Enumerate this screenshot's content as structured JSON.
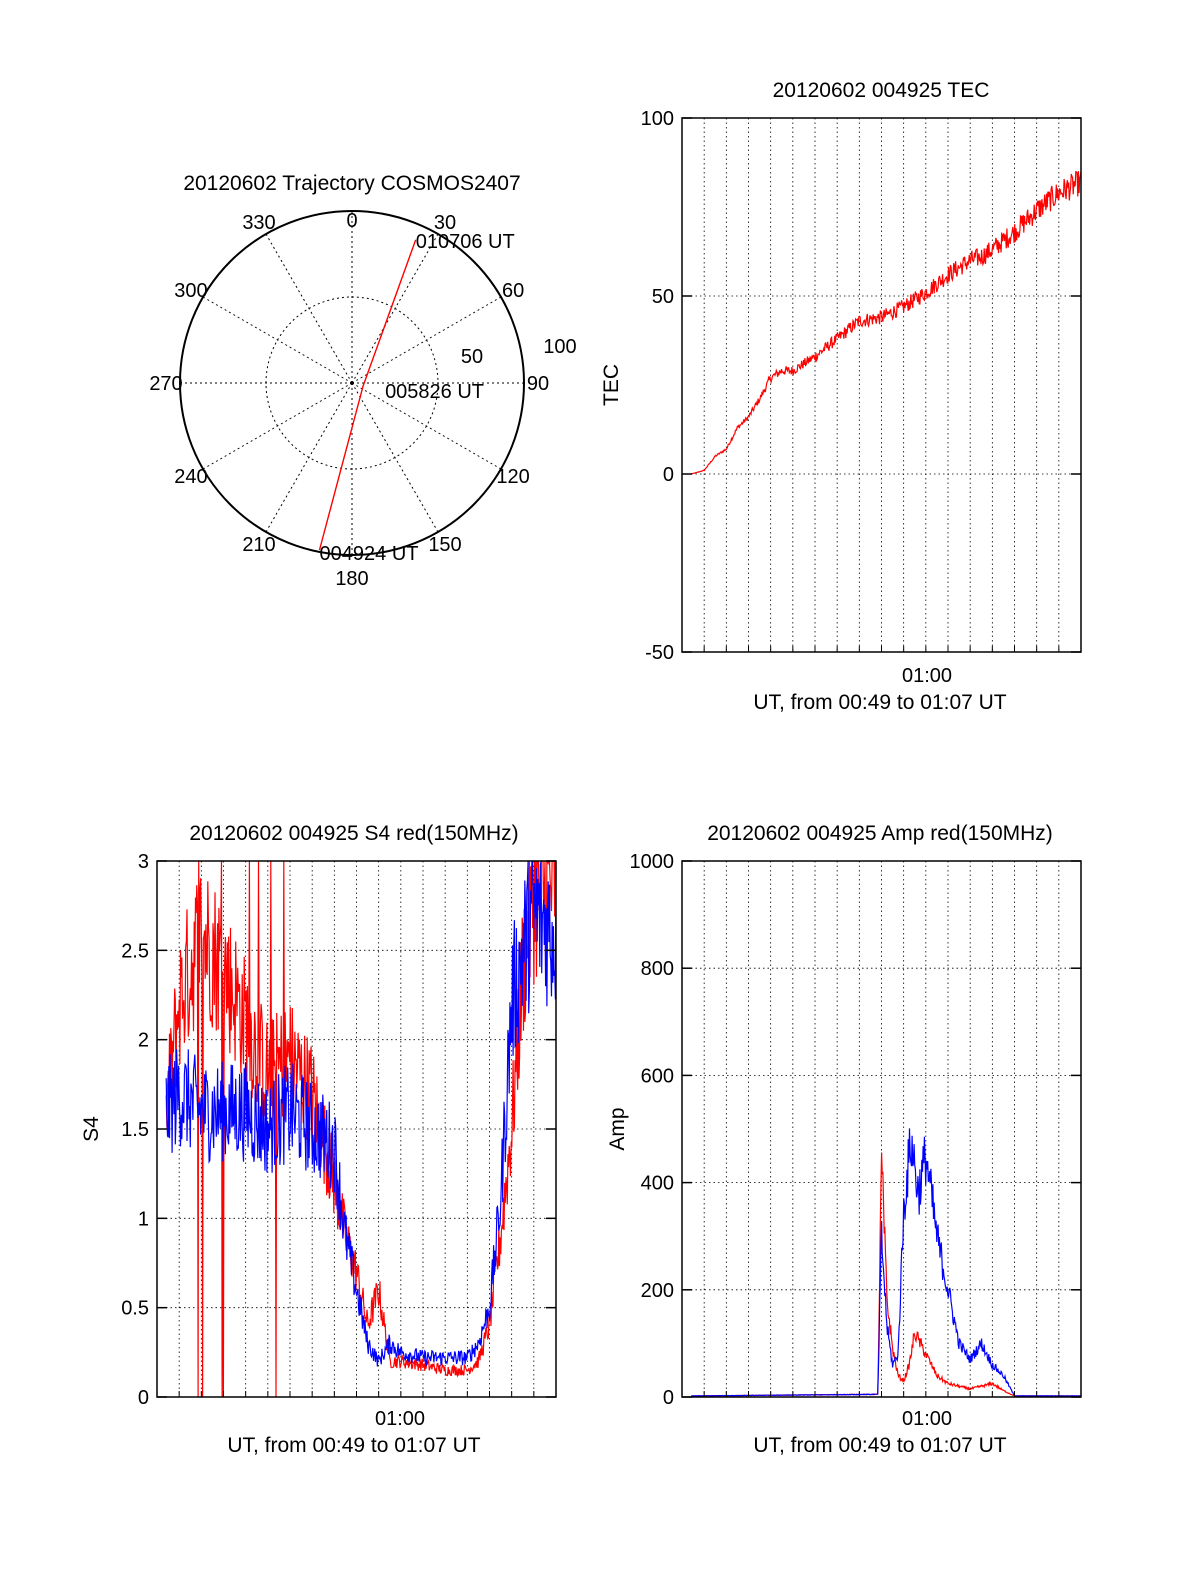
{
  "chart_data": [
    {
      "type": "polar",
      "title": "20120602 Trajectory COSMOS2407",
      "azimuth_labels": [
        "0",
        "30",
        "60",
        "90",
        "120",
        "150",
        "180",
        "210",
        "240",
        "270",
        "300",
        "330"
      ],
      "elevation_ring_labels": [
        "50",
        "100"
      ],
      "grid": true,
      "series": [
        {
          "color": "#ff0000",
          "points": [
            {
              "azimuth": 191,
              "radius": 89,
              "label": "004924 UT"
            },
            {
              "azimuth": 105,
              "radius": 6,
              "label": "005826 UT"
            },
            {
              "azimuth": 24,
              "radius": 82,
              "label": "010706 UT"
            }
          ]
        }
      ]
    },
    {
      "type": "line",
      "title": "20120602 004925 TEC",
      "xlabel": "UT, from 00:49 to 01:07 UT",
      "ylabel": "TEC",
      "x_tick_labels": [
        "01:00"
      ],
      "xlim": [
        "00:49",
        "01:07"
      ],
      "ylim": [
        -50,
        100
      ],
      "y_ticks": [
        -50,
        0,
        50,
        100
      ],
      "grid": true,
      "series": [
        {
          "color": "#ff0000",
          "x": [
            "00:49:25",
            "00:50:00",
            "00:50:30",
            "00:51:00",
            "00:51:30",
            "00:52:00",
            "00:52:30",
            "00:53:00",
            "00:53:30",
            "00:54:00",
            "00:55:00",
            "00:56:00",
            "00:57:00",
            "00:58:00",
            "00:59:00",
            "01:00:00",
            "01:01:00",
            "01:02:00",
            "01:02:30",
            "01:03:00",
            "01:04:00",
            "01:05:00",
            "01:06:00",
            "01:07:00"
          ],
          "values": [
            0,
            1,
            5,
            7,
            13,
            16,
            21,
            27,
            29,
            29,
            33,
            38,
            43,
            44,
            47,
            51,
            56,
            60,
            61,
            63,
            68,
            74,
            79,
            82
          ]
        }
      ]
    },
    {
      "type": "line",
      "title": "20120602 004925 S4 red(150MHz)",
      "xlabel": "UT, from 00:49 to 01:07 UT",
      "ylabel": "S4",
      "x_tick_labels": [
        "01:00"
      ],
      "xlim": [
        "00:49",
        "01:07"
      ],
      "ylim": [
        0,
        3
      ],
      "y_ticks": [
        "0",
        "0.5",
        "1",
        "1.5",
        "2",
        "2.5",
        "3"
      ],
      "grid": true,
      "series": [
        {
          "color": "#ff0000",
          "x": [
            "00:49:25",
            "00:50:00",
            "00:51:00",
            "00:52:00",
            "00:53:00",
            "00:54:00",
            "00:55:00",
            "00:56:00",
            "00:57:00",
            "00:57:30",
            "00:58:00",
            "00:58:30",
            "00:59:00",
            "00:59:30",
            "01:00:00",
            "01:01:00",
            "01:02:00",
            "01:03:00",
            "01:03:30",
            "01:04:00",
            "01:04:30",
            "01:05:00",
            "01:05:30",
            "01:06:00",
            "01:07:00"
          ],
          "values": [
            1.6,
            2.2,
            2.6,
            2.4,
            2.1,
            1.8,
            1.9,
            1.7,
            1.2,
            0.9,
            0.7,
            0.4,
            0.6,
            0.2,
            0.2,
            0.18,
            0.15,
            0.15,
            0.2,
            0.4,
            0.9,
            1.5,
            2.4,
            2.8,
            2.9
          ]
        },
        {
          "color": "#0000ff",
          "x": [
            "00:49:25",
            "00:50:00",
            "00:51:00",
            "00:52:00",
            "00:53:00",
            "00:54:00",
            "00:55:00",
            "00:56:00",
            "00:57:00",
            "00:57:30",
            "00:58:00",
            "00:58:30",
            "00:59:00",
            "00:59:30",
            "01:00:00",
            "01:01:00",
            "01:02:00",
            "01:03:00",
            "01:03:30",
            "01:04:00",
            "01:04:30",
            "01:05:00",
            "01:05:30",
            "01:06:00",
            "01:07:00"
          ],
          "values": [
            1.6,
            1.7,
            1.6,
            1.6,
            1.6,
            1.5,
            1.6,
            1.5,
            1.4,
            0.9,
            0.6,
            0.3,
            0.2,
            0.3,
            0.25,
            0.22,
            0.22,
            0.22,
            0.3,
            0.5,
            1.1,
            2.2,
            2.5,
            2.7,
            2.6
          ]
        }
      ]
    },
    {
      "type": "line",
      "title": "20120602 004925 Amp red(150MHz)",
      "xlabel": "UT, from 00:49 to 01:07 UT",
      "ylabel": "Amp",
      "x_tick_labels": [
        "01:00"
      ],
      "xlim": [
        "00:49",
        "01:07"
      ],
      "ylim": [
        0,
        1000
      ],
      "y_ticks": [
        0,
        200,
        400,
        600,
        800,
        1000
      ],
      "grid": true,
      "series": [
        {
          "color": "#ff0000",
          "x": [
            "00:49:25",
            "00:57:50",
            "00:58:00",
            "00:58:15",
            "00:58:30",
            "00:58:45",
            "00:59:00",
            "00:59:15",
            "00:59:30",
            "01:00:00",
            "01:00:30",
            "01:01:00",
            "01:01:30",
            "01:02:00",
            "01:02:30",
            "01:03:00",
            "01:03:30",
            "01:04:00",
            "01:07:00"
          ],
          "values": [
            2,
            5,
            440,
            180,
            90,
            40,
            30,
            60,
            120,
            80,
            40,
            25,
            20,
            15,
            20,
            25,
            12,
            2,
            2
          ]
        },
        {
          "color": "#0000ff",
          "x": [
            "00:49:25",
            "00:57:50",
            "00:58:00",
            "00:58:15",
            "00:58:30",
            "00:58:45",
            "00:59:00",
            "00:59:20",
            "00:59:40",
            "01:00:00",
            "01:00:30",
            "01:01:00",
            "01:01:30",
            "01:02:00",
            "01:02:30",
            "01:03:00",
            "01:03:30",
            "01:04:00",
            "01:07:00"
          ],
          "values": [
            2,
            5,
            300,
            130,
            60,
            80,
            350,
            480,
            380,
            450,
            300,
            200,
            100,
            70,
            100,
            60,
            40,
            2,
            2
          ]
        }
      ]
    }
  ]
}
